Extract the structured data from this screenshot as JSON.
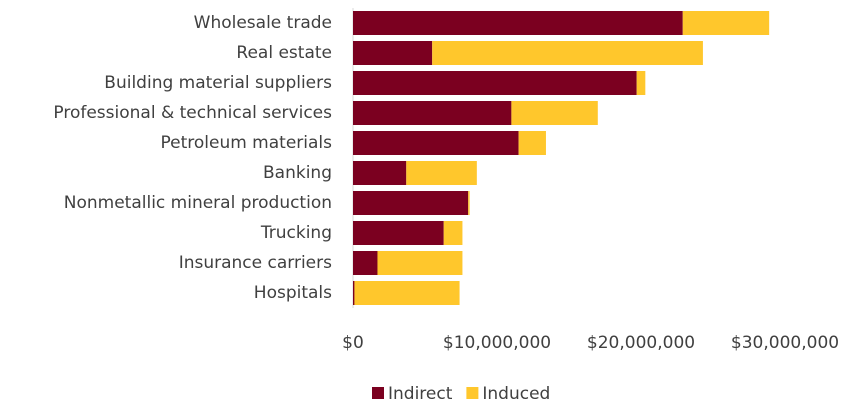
{
  "chart_data": {
    "type": "stacked_barh",
    "categories": [
      "Wholesale trade",
      "Real estate",
      "Building material suppliers",
      "Professional & technical services",
      "Petroleum materials",
      "Banking",
      "Nonmetallic mineral production",
      "Trucking",
      "Insurance carriers",
      "Hospitals"
    ],
    "series": [
      {
        "name": "Indirect",
        "color": "#7b0020",
        "values": [
          22900000,
          5500000,
          19700000,
          11000000,
          11500000,
          3700000,
          8000000,
          6300000,
          1700000,
          100000
        ]
      },
      {
        "name": "Induced",
        "color": "#ffc72c",
        "values": [
          6000000,
          18800000,
          600000,
          6000000,
          1900000,
          4900000,
          100000,
          1300000,
          5900000,
          7300000
        ]
      }
    ],
    "xlim": [
      0,
      30000000
    ],
    "xticks": [
      {
        "value": 0,
        "label": "$0"
      },
      {
        "value": 10000000,
        "label": "$10,000,000"
      },
      {
        "value": 20000000,
        "label": "$20,000,000"
      },
      {
        "value": 30000000,
        "label": "$30,000,000"
      }
    ],
    "grid": false,
    "legend": "bottom"
  }
}
